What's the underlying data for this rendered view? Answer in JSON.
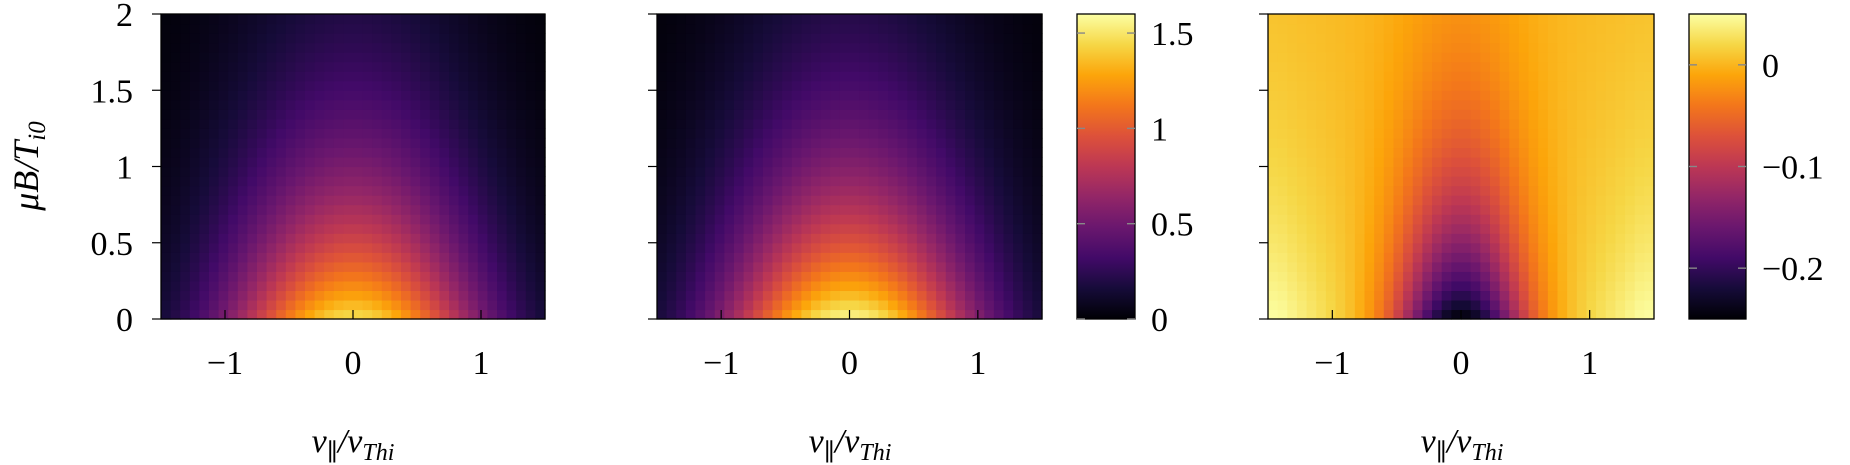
{
  "chart_data": [
    {
      "type": "heatmap",
      "title": "",
      "xlabel_base": "v",
      "xlabel_sub1": "∥",
      "xlabel_mid": "/v",
      "xlabel_sub2": "Thi",
      "ylabel_base": "μB/T",
      "ylabel_sub": "i0",
      "xlim": [
        -1.5,
        1.5
      ],
      "ylim": [
        0,
        2
      ],
      "xticks": [
        -1,
        0,
        1
      ],
      "xtick_labels": [
        "−1",
        "0",
        "1"
      ],
      "yticks": [
        0,
        0.5,
        1,
        1.5,
        2
      ],
      "ytick_labels": [
        "0",
        "0.5",
        "1",
        "1.5",
        "2"
      ],
      "show_ytick_labels": true,
      "grid": false,
      "function": "maxwellian",
      "peak_value": 1.48,
      "colorscale": "inferno",
      "clim": [
        0,
        1.6
      ],
      "colorbar": false
    },
    {
      "type": "heatmap",
      "title": "",
      "xlabel_base": "v",
      "xlabel_sub1": "∥",
      "xlabel_mid": "/v",
      "xlabel_sub2": "Thi",
      "xlim": [
        -1.5,
        1.5
      ],
      "ylim": [
        0,
        2
      ],
      "xticks": [
        -1,
        0,
        1
      ],
      "xtick_labels": [
        "−1",
        "0",
        "1"
      ],
      "yticks": [
        0,
        0.5,
        1,
        1.5,
        2
      ],
      "show_ytick_labels": false,
      "grid": false,
      "function": "maxwellian",
      "peak_value": 1.58,
      "colorscale": "inferno",
      "clim": [
        0,
        1.6
      ],
      "colorbar": true,
      "colorbar_ticks": [
        0,
        0.5,
        1,
        1.5
      ],
      "colorbar_tick_labels": [
        "0",
        "0.5",
        "1",
        "1.5"
      ]
    },
    {
      "type": "heatmap",
      "title": "",
      "xlabel_base": "v",
      "xlabel_sub1": "∥",
      "xlabel_mid": "/v",
      "xlabel_sub2": "Thi",
      "xlim": [
        -1.5,
        1.5
      ],
      "ylim": [
        0,
        2
      ],
      "xticks": [
        -1,
        0,
        1
      ],
      "xtick_labels": [
        "−1",
        "0",
        "1"
      ],
      "yticks": [
        0,
        0.5,
        1,
        1.5,
        2
      ],
      "show_ytick_labels": false,
      "grid": false,
      "function": "difference",
      "min_value": -0.25,
      "edge_value": 0.05,
      "colorscale": "inferno",
      "clim": [
        -0.25,
        0.05
      ],
      "colorbar": true,
      "colorbar_ticks": [
        0,
        -0.1,
        -0.2
      ],
      "colorbar_tick_labels": [
        "0",
        "−0.1",
        "−0.2"
      ]
    }
  ]
}
